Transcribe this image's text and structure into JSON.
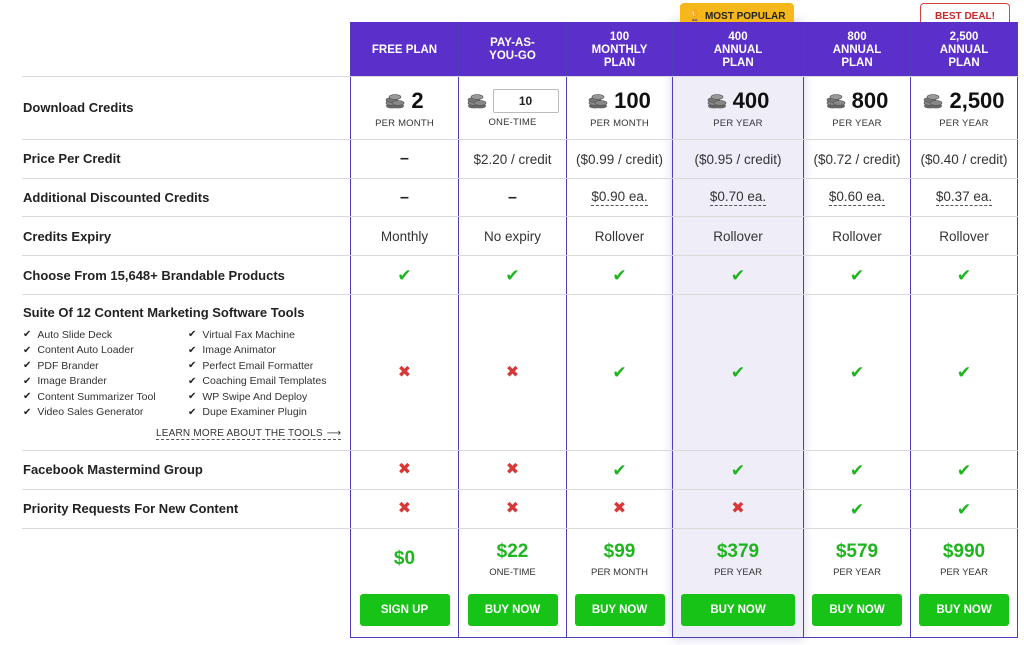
{
  "badges": {
    "most_popular": "MOST POPULAR",
    "best_deal": "BEST DEAL!"
  },
  "plans": [
    {
      "id": "free",
      "name": "FREE PLAN",
      "credits": "2",
      "credits_sub": "PER MONTH",
      "price_per_credit": "–",
      "discounted": "–",
      "expiry": "Monthly",
      "products": "yes",
      "suite": "no",
      "mastermind": "no",
      "priority": "no",
      "price": "$0",
      "price_sub": "",
      "button": "SIGN UP"
    },
    {
      "id": "payg",
      "name": "PAY-AS-YOU-GO",
      "credits": "10",
      "credits_sub": "ONE-TIME",
      "price_per_credit": "$2.20 / credit",
      "discounted": "–",
      "expiry": "No expiry",
      "products": "yes",
      "suite": "no",
      "mastermind": "no",
      "priority": "no",
      "price": "$22",
      "price_sub": "ONE-TIME",
      "button": "BUY NOW"
    },
    {
      "id": "m100",
      "name": "100 MONTHLY PLAN",
      "credits": "100",
      "credits_sub": "PER MONTH",
      "price_per_credit": "($0.99 / credit)",
      "discounted": "$0.90 ea.",
      "expiry": "Rollover",
      "products": "yes",
      "suite": "yes",
      "mastermind": "yes",
      "priority": "no",
      "price": "$99",
      "price_sub": "PER MONTH",
      "button": "BUY NOW"
    },
    {
      "id": "a400",
      "name": "400 ANNUAL PLAN",
      "credits": "400",
      "credits_sub": "PER YEAR",
      "price_per_credit": "($0.95 / credit)",
      "discounted": "$0.70 ea.",
      "expiry": "Rollover",
      "products": "yes",
      "suite": "yes",
      "mastermind": "yes",
      "priority": "no",
      "price": "$379",
      "price_sub": "PER YEAR",
      "button": "BUY NOW"
    },
    {
      "id": "a800",
      "name": "800 ANNUAL PLAN",
      "credits": "800",
      "credits_sub": "PER YEAR",
      "price_per_credit": "($0.72 / credit)",
      "discounted": "$0.60 ea.",
      "expiry": "Rollover",
      "products": "yes",
      "suite": "yes",
      "mastermind": "yes",
      "priority": "yes",
      "price": "$579",
      "price_sub": "PER YEAR",
      "button": "BUY NOW"
    },
    {
      "id": "a2500",
      "name": "2,500 ANNUAL PLAN",
      "credits": "2,500",
      "credits_sub": "PER YEAR",
      "price_per_credit": "($0.40 / credit)",
      "discounted": "$0.37 ea.",
      "expiry": "Rollover",
      "products": "yes",
      "suite": "yes",
      "mastermind": "yes",
      "priority": "yes",
      "price": "$990",
      "price_sub": "PER YEAR",
      "button": "BUY NOW"
    }
  ],
  "rows": {
    "download_credits": "Download Credits",
    "price_per_credit": "Price Per Credit",
    "discounted": "Additional Discounted Credits",
    "expiry": "Credits Expiry",
    "products": "Choose From 15,648+ Brandable Products",
    "suite": "Suite Of 12 Content Marketing Software Tools",
    "mastermind": "Facebook Mastermind Group",
    "priority": "Priority Requests For New Content"
  },
  "tools_left": [
    "Auto Slide Deck",
    "Content Auto Loader",
    "PDF Brander",
    "Image Brander",
    "Content Summarizer Tool",
    "Video Sales Generator"
  ],
  "tools_right": [
    "Virtual Fax Machine",
    "Image Animator",
    "Perfect Email Formatter",
    "Coaching Email Templates",
    "WP Swipe And Deploy",
    "Dupe Examiner Plugin"
  ],
  "learn_more": "LEARN MORE ABOUT THE TOOLS",
  "colors": {
    "header": "#5b2fc9",
    "accent_green": "#1fb51f",
    "cross_red": "#d93838",
    "popular_badge": "#f5b71a",
    "popular_bg": "#eeedf8"
  }
}
